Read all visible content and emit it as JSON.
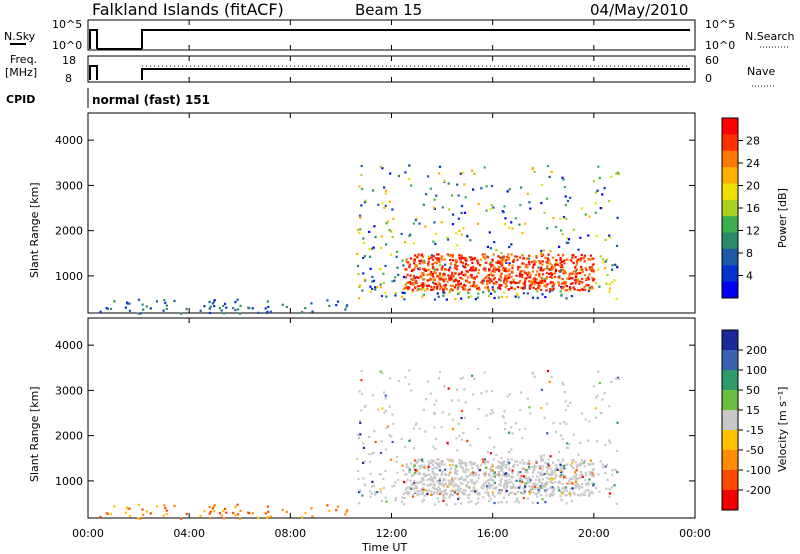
{
  "header": {
    "station": "Falkland Islands (fitACF)",
    "beam": "Beam 15",
    "date": "04/May/2010"
  },
  "status_panels": {
    "nsky_label": "N.Sky",
    "nsearch_label": "N.Search",
    "left_ticks_top": [
      "10^5",
      "10^0"
    ],
    "right_ticks_top": [
      "10^5",
      "10^0"
    ],
    "freq_label_1": "Freq.",
    "freq_label_2": "[MHz]",
    "freq_ticks": [
      "18",
      "8"
    ],
    "nave_label": "Nave",
    "nave_ticks": [
      "60",
      "0"
    ],
    "cpid_label": "CPID",
    "cpid_value": "normal (fast) 151"
  },
  "chart_data": [
    {
      "type": "heatmap",
      "panel": "power",
      "ylabel": "Slant Range [km]",
      "yticks": [
        "1000",
        "2000",
        "3000",
        "4000"
      ],
      "ylim": [
        180,
        4600
      ],
      "colorbar_label": "Power [dB]",
      "colorbar_ticks": [
        "28",
        "24",
        "20",
        "16",
        "12",
        "8",
        "4"
      ],
      "colorbar_colors": [
        "#ff0000",
        "#ff3000",
        "#ff7a00",
        "#ffb000",
        "#f0e000",
        "#a8d020",
        "#3cb050",
        "#2a8a6a",
        "#1e5aa8",
        "#0033cc",
        "#0000ee"
      ],
      "regions": [
        {
          "t": [
            0.2,
            10.6
          ],
          "r": [
            180,
            500
          ],
          "density": 0.08,
          "band": "low"
        },
        {
          "t": [
            10.6,
            21.0
          ],
          "r": [
            500,
            3500
          ],
          "density": 0.45,
          "band": "mid"
        },
        {
          "t": [
            12.5,
            20.0
          ],
          "r": [
            700,
            1500
          ],
          "density": 0.85,
          "band": "high"
        }
      ]
    },
    {
      "type": "heatmap",
      "panel": "velocity",
      "ylabel": "Slant Range [km]",
      "yticks": [
        "1000",
        "2000",
        "3000",
        "4000"
      ],
      "ylim": [
        180,
        4600
      ],
      "colorbar_label": "Velocity [m s⁻¹]",
      "colorbar_ticks": [
        "200",
        "100",
        "50",
        "15",
        "-15",
        "-50",
        "-100",
        "-200"
      ],
      "colorbar_colors": [
        "#1a2a9a",
        "#3a62b0",
        "#2f9a6a",
        "#6ac040",
        "#c8c8c8",
        "#ffc000",
        "#ff8c00",
        "#ff4800",
        "#ee0000"
      ],
      "xlabel": "Time UT",
      "xticks": [
        "00:00",
        "04:00",
        "08:00",
        "12:00",
        "16:00",
        "20:00",
        "00:00"
      ],
      "xlim": [
        0,
        24
      ]
    }
  ]
}
